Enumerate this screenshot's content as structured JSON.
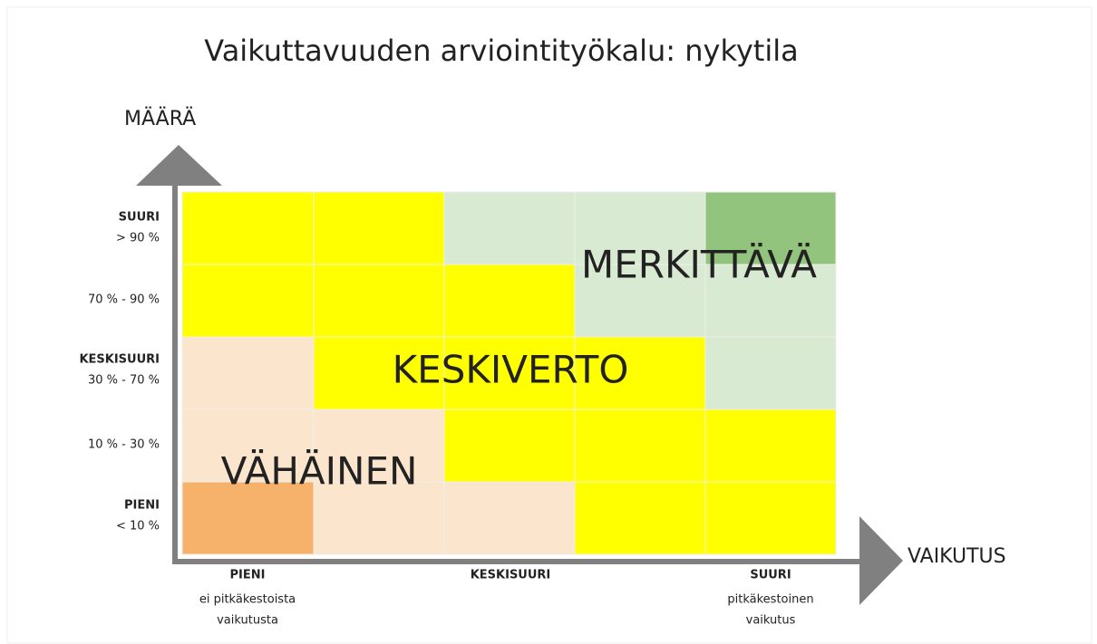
{
  "title": "Vaikuttavuuden arviointityökalu: nykytila",
  "y_axis": {
    "label": "MÄÄRÄ",
    "rows": [
      {
        "name": "SUURI",
        "range": "> 90 %"
      },
      {
        "range": "70 % - 90 %"
      },
      {
        "name": "KESKISUURI",
        "range": "30 % - 70 %"
      },
      {
        "range": "10 % - 30 %"
      },
      {
        "name": "PIENI",
        "range": "< 10 %"
      }
    ]
  },
  "x_axis": {
    "label": "VAIKUTUS",
    "columns": [
      {
        "name": "PIENI",
        "lines": [
          "ei pitkäkestoista",
          "vaikutusta"
        ]
      },
      {
        "name": "KESKISUURI"
      },
      {
        "name": "SUURI",
        "lines": [
          "pitkäkestoinen",
          "vaikutus"
        ]
      }
    ]
  },
  "zones": [
    "MERKITTÄVÄ",
    "KESKIVERTO",
    "VÄHÄINEN"
  ]
}
